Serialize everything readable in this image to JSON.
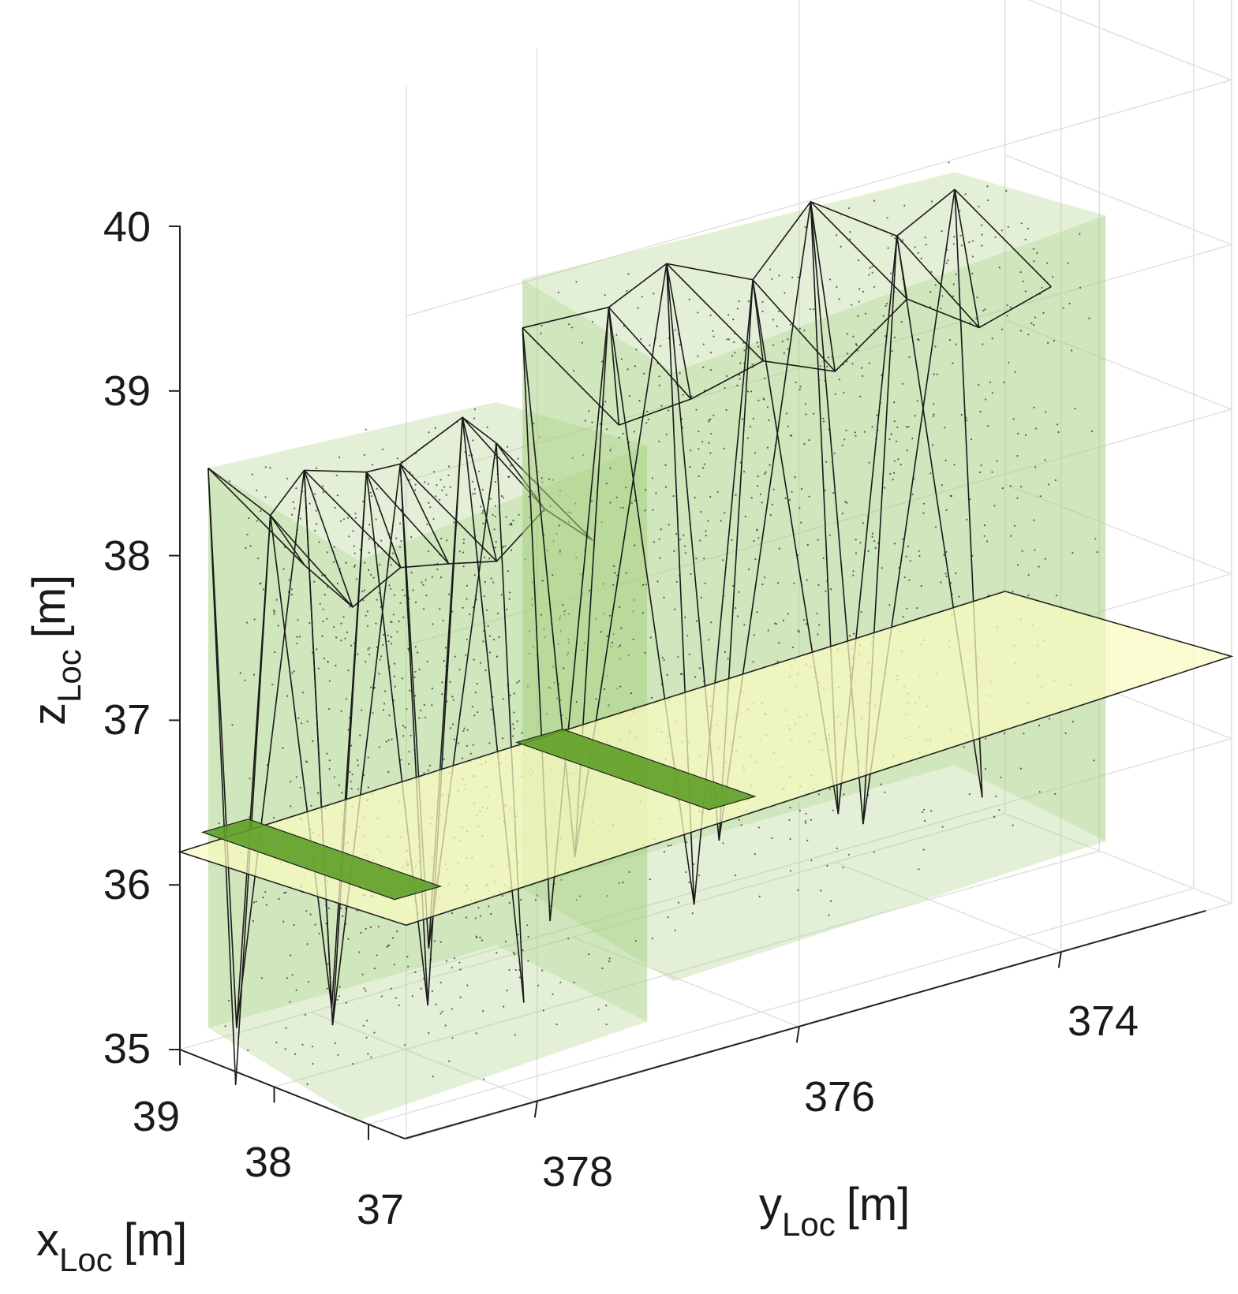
{
  "chart_data": {
    "type": "scatter",
    "subtype": "3d-surface-mesh-with-point-cloud",
    "xlabel": {
      "main": "x",
      "sub": "Loc",
      "unit": "[m]"
    },
    "ylabel": {
      "main": "y",
      "sub": "Loc",
      "unit": "[m]"
    },
    "zlabel": {
      "main": "z",
      "sub": "Loc",
      "unit": "[m]"
    },
    "xlim": [
      36.6,
      39
    ],
    "ylim": [
      372.7,
      379
    ],
    "zlim": [
      35,
      40
    ],
    "x_ticks": [
      "39",
      "38",
      "37"
    ],
    "y_ticks": [
      "378",
      "376",
      "374"
    ],
    "z_ticks": [
      "35",
      "36",
      "37",
      "38",
      "39",
      "40"
    ],
    "grid": true,
    "colors": {
      "hull_fill": "#a9cf82",
      "hull_edge": "#1a1a1a",
      "ground_plane": "#fbfbc0",
      "footprint": "#5e9e26",
      "points": "#222222",
      "grid": "#e0e0e0"
    },
    "objects": [
      {
        "name": "",
        "y_range": [
          376.8,
          379
        ],
        "top_z": 38.6,
        "bottom_z": 35.0
      },
      {
        "name": "",
        "y_range": [
          373.3,
          376.6
        ],
        "top_z": 39.2,
        "bottom_z": 35.3
      }
    ],
    "ground_plane_z": 36.3
  }
}
